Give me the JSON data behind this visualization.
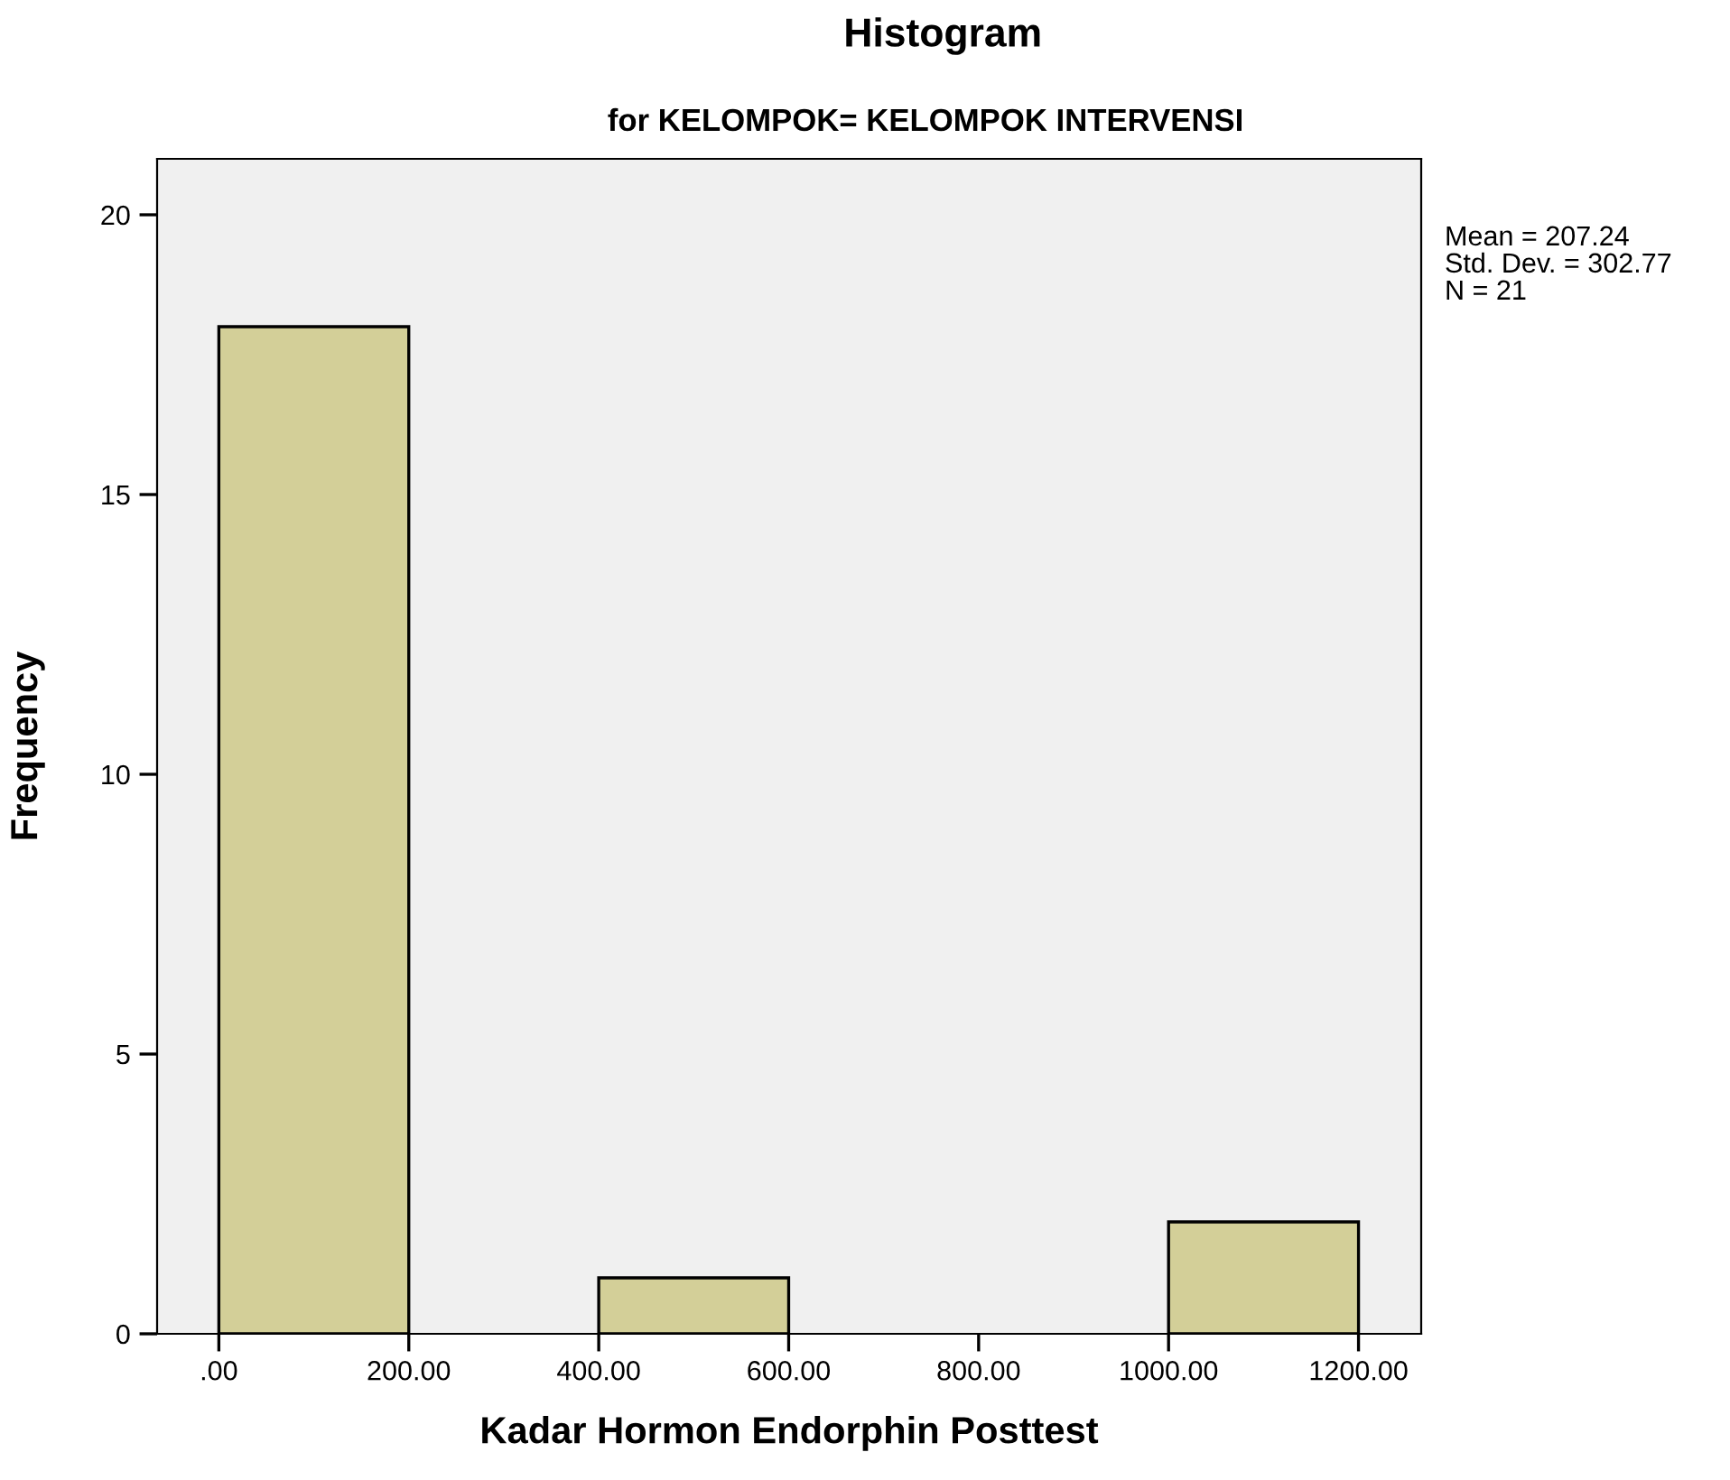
{
  "chart_data": {
    "type": "histogram",
    "title": "Histogram",
    "subtitle": "for KELOMPOK= KELOMPOK INTERVENSI",
    "xlabel": "Kadar Hormon Endorphin Posttest",
    "ylabel": "Frequency",
    "bins": [
      0,
      200,
      400,
      600,
      800,
      1000,
      1200
    ],
    "values": [
      18,
      0,
      1,
      0,
      0,
      2
    ],
    "color": "#d3cf98",
    "xlim": [
      -65,
      1266
    ],
    "ylim": [
      0,
      21
    ],
    "xticks": [
      {
        "value": 0,
        "label": ".00"
      },
      {
        "value": 200,
        "label": "200.00"
      },
      {
        "value": 400,
        "label": "400.00"
      },
      {
        "value": 600,
        "label": "600.00"
      },
      {
        "value": 800,
        "label": "800.00"
      },
      {
        "value": 1000,
        "label": "1000.00"
      },
      {
        "value": 1200,
        "label": "1200.00"
      }
    ],
    "yticks": [
      0,
      5,
      10,
      15,
      20
    ],
    "annotations": [
      "Mean = 207.24",
      "Std. Dev. = 302.77",
      "N = 21"
    ],
    "grid": false,
    "legend": false
  }
}
